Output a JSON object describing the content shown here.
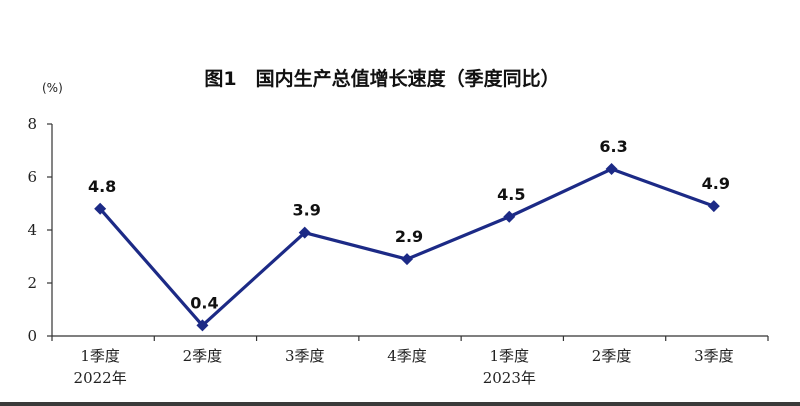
{
  "chart_data": {
    "type": "line",
    "title": "图1　国内生产总值增长速度（季度同比）",
    "ylabel": "(%)",
    "xlabel": "",
    "ylim": [
      0,
      8
    ],
    "yticks": [
      "0",
      "2",
      "4",
      "6",
      "8"
    ],
    "categories": [
      "1季度",
      "2季度",
      "3季度",
      "4季度",
      "1季度",
      "2季度",
      "3季度"
    ],
    "year_labels": [
      "2022年",
      "",
      "",
      "",
      "2023年",
      "",
      ""
    ],
    "series": [
      {
        "values": [
          4.8,
          0.4,
          3.9,
          2.9,
          4.5,
          6.3,
          4.9
        ],
        "labels": [
          "4.8",
          "0.4",
          "3.9",
          "2.9",
          "4.5",
          "6.3",
          "4.9"
        ],
        "color": "#1c2a86"
      }
    ],
    "grid": false,
    "legend": "none"
  }
}
